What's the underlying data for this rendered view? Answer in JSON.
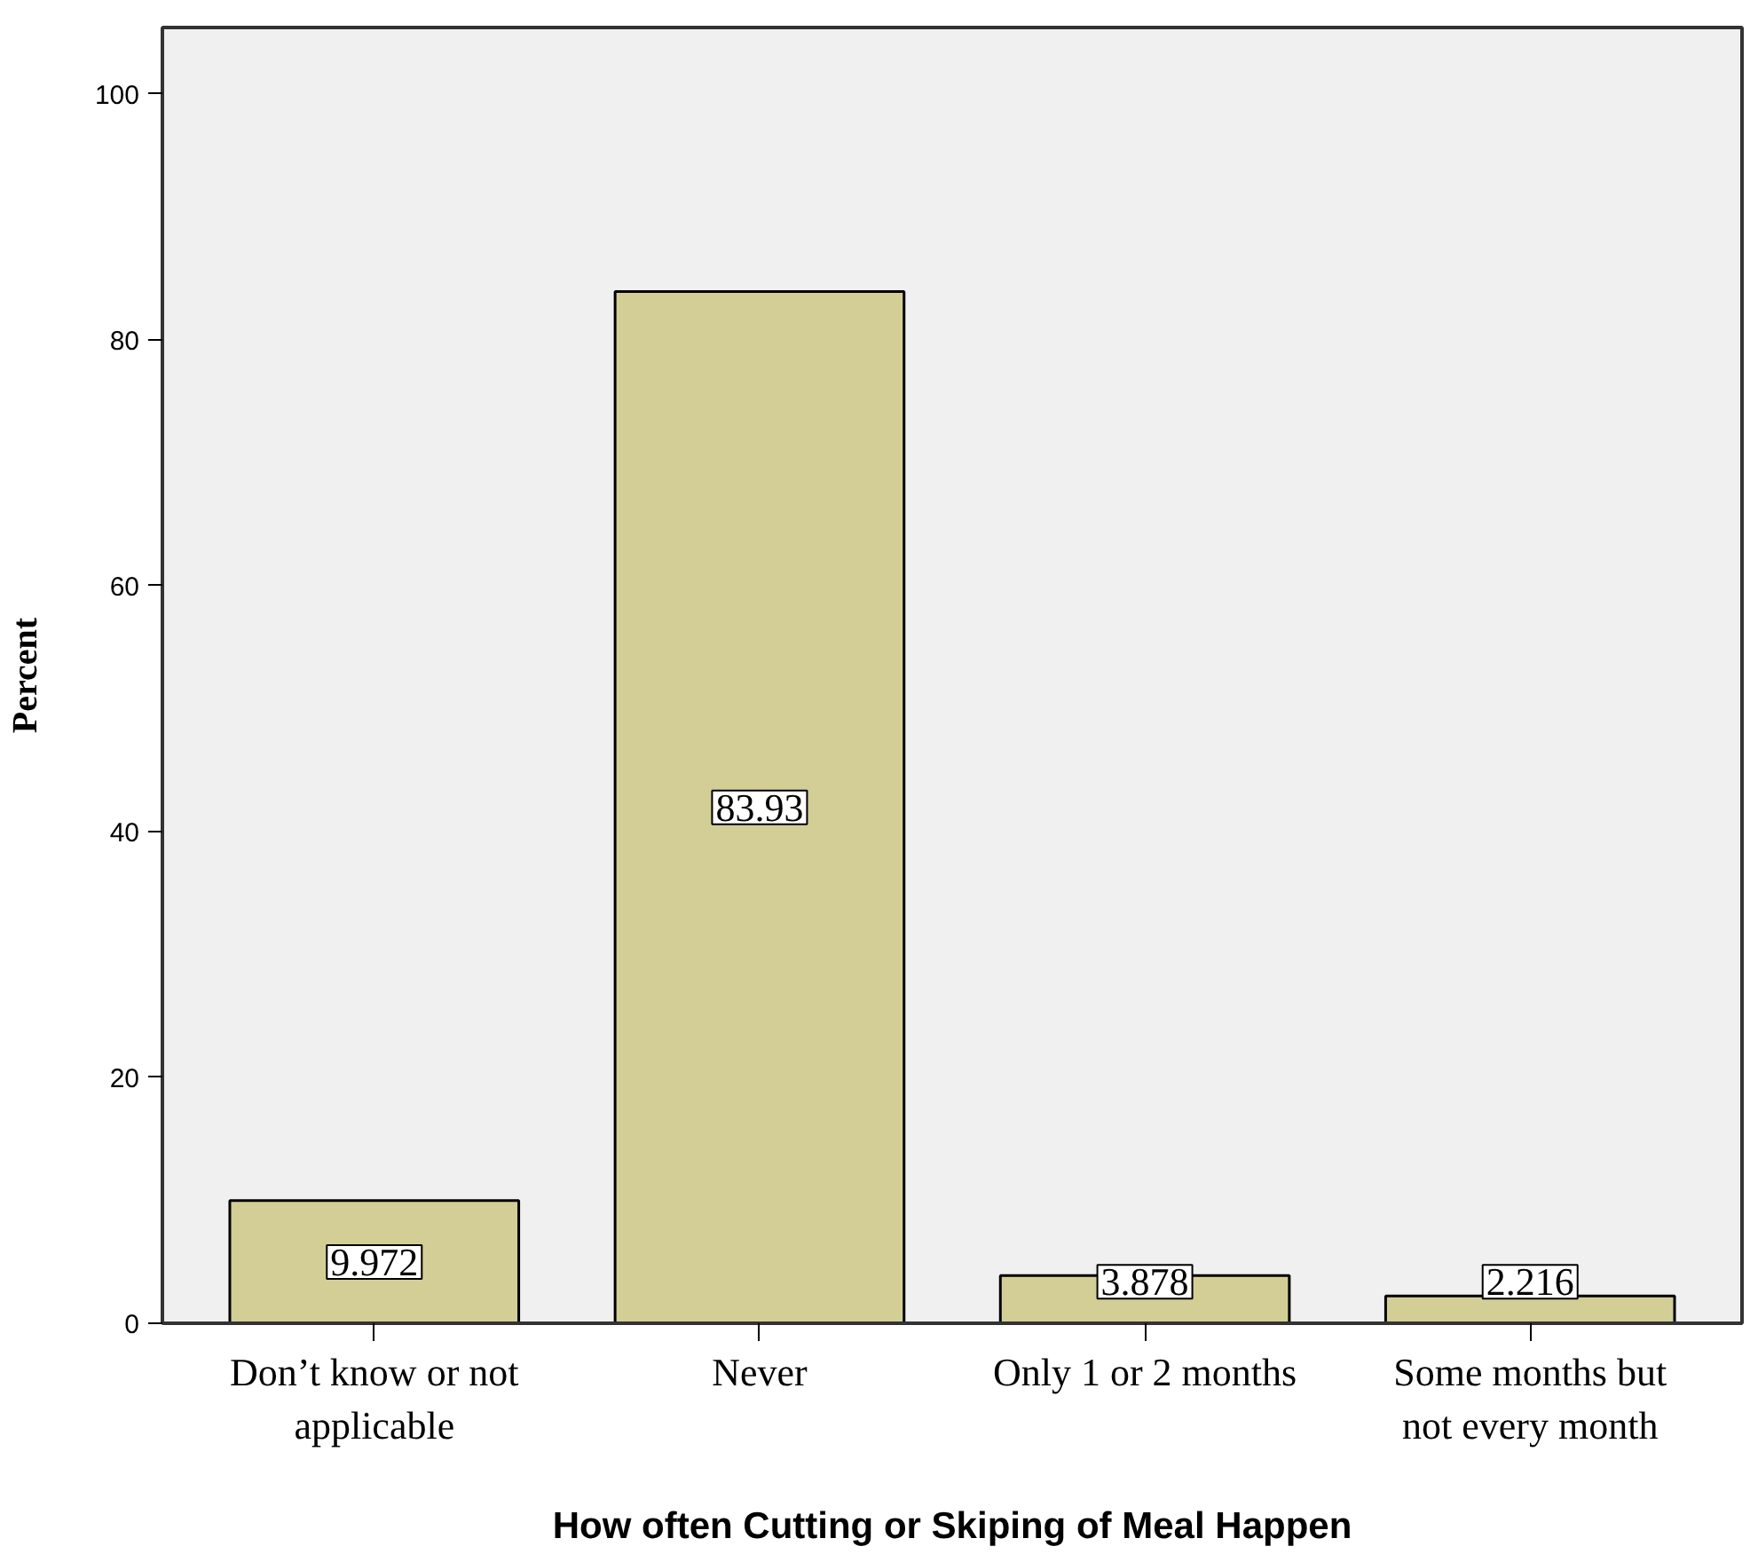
{
  "chart_data": {
    "type": "bar",
    "xlabel": "How often Cutting or Skiping of Meal Happen",
    "ylabel": "Percent",
    "categories": [
      "Don’t know or not applicable",
      "Never",
      "Only 1 or 2 months",
      "Some months but not every month"
    ],
    "values": [
      9.972,
      83.93,
      3.878,
      2.216
    ],
    "color": "#d3ce96",
    "ylim": [
      0,
      105.4
    ],
    "yticks": [
      0,
      20,
      40,
      60,
      80,
      100
    ],
    "grid": false,
    "data_labels": true
  }
}
